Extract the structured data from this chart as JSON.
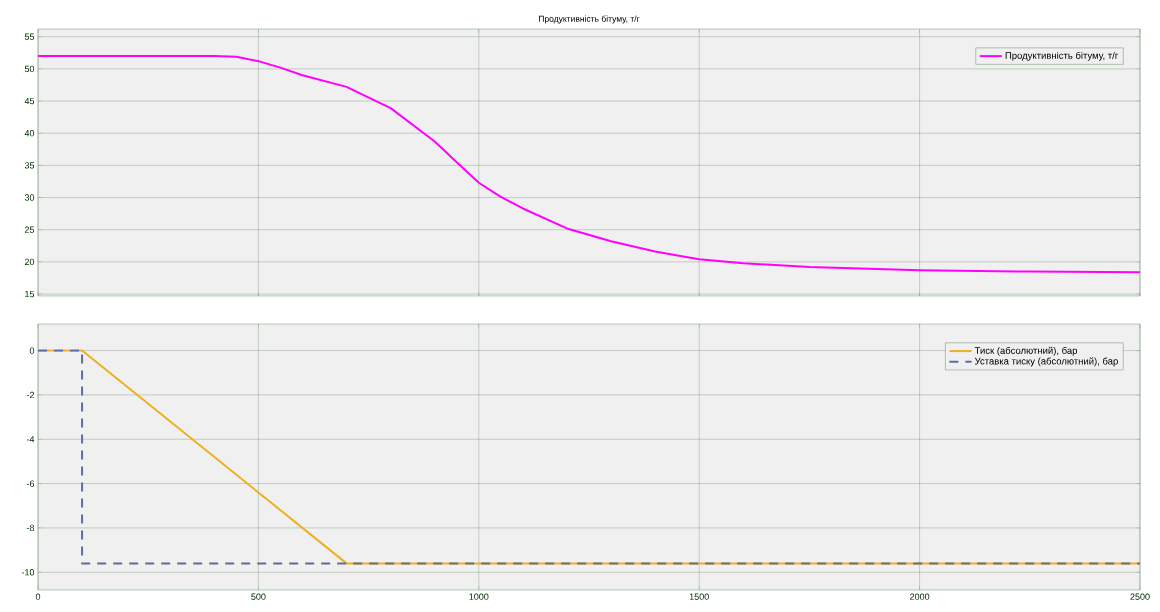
{
  "chart_data": [
    {
      "type": "line",
      "title": "Продуктивність бітуму, т/г",
      "xlim": [
        0,
        2500
      ],
      "xticks": [
        0,
        500,
        1000,
        1500,
        2000,
        2500
      ],
      "ylim": [
        14.7,
        56.2
      ],
      "yticks": [
        15,
        20,
        25,
        30,
        35,
        40,
        45,
        50,
        55
      ],
      "grid": true,
      "legend": "top right",
      "tick_labels": "y",
      "series": [
        {
          "name": "Продуктивність бітуму, т/г",
          "color": "#ff00ff",
          "line_style": "solid",
          "x": [
            0,
            400,
            450,
            500,
            550,
            600,
            700,
            800,
            900,
            950,
            1000,
            1050,
            1100,
            1200,
            1300,
            1400,
            1500,
            1600,
            1750,
            2000,
            2250,
            2500
          ],
          "values": [
            52,
            52,
            51.9,
            51.2,
            50.2,
            49.0,
            47.2,
            43.9,
            38.7,
            35.5,
            32.3,
            30.1,
            28.3,
            25.2,
            23.2,
            21.6,
            20.4,
            19.8,
            19.2,
            18.7,
            18.5,
            18.4
          ]
        }
      ]
    },
    {
      "type": "line",
      "xlim": [
        0,
        2500
      ],
      "xticks": [
        0,
        500,
        1000,
        1500,
        2000,
        2500
      ],
      "ylim": [
        -10.8,
        1.2
      ],
      "yticks": [
        -10,
        -8,
        -6,
        -4,
        -2,
        0
      ],
      "grid": true,
      "legend": "top right",
      "series": [
        {
          "name": "Тиск (абсолютний), бар",
          "color": "#edb120",
          "line_style": "solid",
          "x": [
            0,
            100,
            700,
            2500
          ],
          "values": [
            0,
            0,
            -9.6,
            -9.6
          ]
        },
        {
          "name": "Уставка тиску (абсолютний), бар",
          "color": "#5a6ea5",
          "line_style": "dashed",
          "x": [
            0,
            100,
            100,
            2500
          ],
          "values": [
            0,
            0,
            -9.6,
            -9.6
          ]
        }
      ]
    }
  ]
}
